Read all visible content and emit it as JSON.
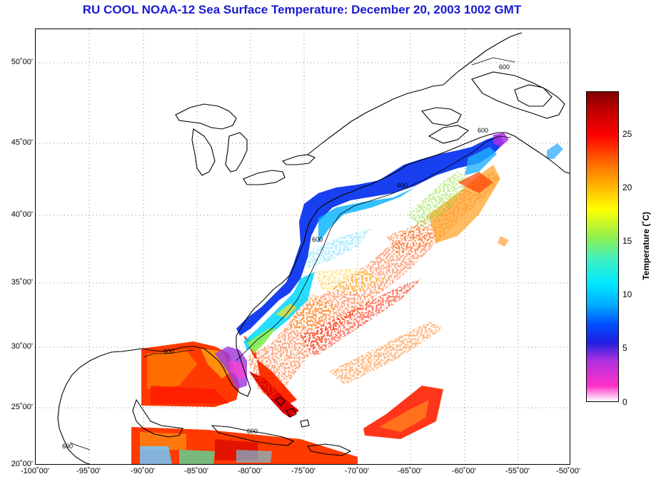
{
  "title": "RU COOL  NOAA-12  Sea Surface Temperature:  December 20, 2003 1002 GMT",
  "map": {
    "lat_labels": [
      "50˚00'",
      "45˚00'",
      "40˚00'",
      "35˚00'",
      "30˚00'",
      "25˚00'",
      "20˚00'"
    ],
    "lon_labels": [
      "-100˚00'",
      "-95˚00'",
      "-90˚00'",
      "-85˚00'",
      "-80˚00'",
      "-75˚00'",
      "-70˚00'",
      "-65˚00'",
      "-60˚00'",
      "-55˚00'",
      "-50˚00'"
    ],
    "isobath_label": "600"
  },
  "colorbar": {
    "ticks": [
      "25",
      "20",
      "15",
      "10",
      "5",
      "0"
    ],
    "label": "Temperature (˚C)",
    "range": [
      0,
      29
    ],
    "colors": [
      "#ffffff",
      "#ff30c8",
      "#b030e0",
      "#2020e0",
      "#0050ff",
      "#00aaff",
      "#00e8ff",
      "#40f0c0",
      "#90f050",
      "#ffff00",
      "#ffb000",
      "#ff6000",
      "#ff0000",
      "#c00000",
      "#800000"
    ]
  }
}
